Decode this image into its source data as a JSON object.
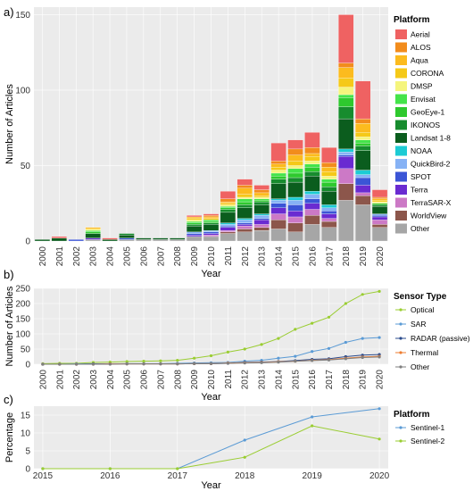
{
  "chart_data": [
    {
      "panel_label": "a)",
      "type": "bar",
      "stacked": true,
      "xlabel": "Year",
      "ylabel": "Number of Articles",
      "ylim": [
        0,
        155
      ],
      "yticks": [
        0,
        50,
        100,
        150
      ],
      "categories": [
        "2000",
        "2001",
        "2002",
        "2003",
        "2004",
        "2005",
        "2006",
        "2007",
        "2008",
        "2009",
        "2010",
        "2011",
        "2012",
        "2013",
        "2014",
        "2015",
        "2016",
        "2017",
        "2018",
        "2019",
        "2020"
      ],
      "legend_title": "Platform",
      "legend_position": "right",
      "series": [
        {
          "name": "Other",
          "color": "#a6a6a6",
          "values": [
            0,
            0,
            0,
            1,
            0,
            1,
            1,
            1,
            1,
            3,
            3,
            5,
            6,
            7,
            8,
            6,
            11,
            9,
            27,
            24,
            9
          ]
        },
        {
          "name": "WorldView",
          "color": "#8c564b",
          "values": [
            0,
            0,
            0,
            0,
            0,
            0,
            0,
            0,
            0,
            0,
            0,
            1,
            2,
            2,
            6,
            6,
            6,
            4,
            11,
            6,
            2
          ]
        },
        {
          "name": "TerraSAR-X",
          "color": "#cc79c6",
          "values": [
            0,
            0,
            0,
            0,
            0,
            0,
            0,
            0,
            0,
            0,
            1,
            1,
            2,
            2,
            4,
            4,
            4,
            2,
            10,
            2,
            3
          ]
        },
        {
          "name": "Terra",
          "color": "#6a2bd1",
          "values": [
            0,
            0,
            0,
            1,
            0,
            0,
            0,
            0,
            0,
            1,
            1,
            2,
            1,
            3,
            4,
            4,
            4,
            3,
            8,
            5,
            2
          ]
        },
        {
          "name": "SPOT",
          "color": "#3b55d6",
          "values": [
            0,
            0,
            1,
            0,
            0,
            1,
            0,
            0,
            0,
            1,
            1,
            1,
            1,
            1,
            3,
            4,
            3,
            2,
            1,
            5,
            1
          ]
        },
        {
          "name": "QuickBird-2",
          "color": "#86b2f5",
          "values": [
            0,
            0,
            0,
            0,
            0,
            0,
            0,
            0,
            0,
            1,
            1,
            1,
            2,
            2,
            2,
            3,
            3,
            2,
            2,
            2,
            1
          ]
        },
        {
          "name": "NOAA",
          "color": "#1ccbd4",
          "values": [
            0,
            0,
            0,
            0,
            0,
            0,
            0,
            0,
            0,
            0,
            0,
            1,
            1,
            1,
            1,
            2,
            2,
            2,
            2,
            3,
            0
          ]
        },
        {
          "name": "Landsat 1-8",
          "color": "#0b5d1e",
          "values": [
            1,
            2,
            0,
            3,
            1,
            2,
            1,
            1,
            1,
            4,
            4,
            7,
            7,
            6,
            10,
            10,
            10,
            9,
            20,
            13,
            5
          ]
        },
        {
          "name": "IKONOS",
          "color": "#178c2e",
          "values": [
            0,
            0,
            0,
            0,
            0,
            1,
            0,
            0,
            0,
            1,
            1,
            2,
            2,
            2,
            3,
            3,
            3,
            3,
            8,
            3,
            1
          ]
        },
        {
          "name": "GeoEye-1",
          "color": "#2ec92e",
          "values": [
            0,
            0,
            0,
            1,
            0,
            0,
            0,
            0,
            0,
            1,
            1,
            1,
            2,
            1,
            2,
            3,
            3,
            3,
            6,
            2,
            1
          ]
        },
        {
          "name": "Envisat",
          "color": "#44e44a",
          "values": [
            0,
            0,
            0,
            1,
            0,
            0,
            0,
            0,
            0,
            1,
            1,
            1,
            2,
            1,
            2,
            3,
            2,
            2,
            2,
            2,
            0
          ]
        },
        {
          "name": "DMSP",
          "color": "#f5f57d",
          "values": [
            0,
            0,
            0,
            1,
            0,
            0,
            0,
            0,
            0,
            1,
            0,
            1,
            1,
            1,
            2,
            2,
            2,
            2,
            5,
            2,
            1
          ]
        },
        {
          "name": "CORONA",
          "color": "#f5c918",
          "values": [
            0,
            0,
            0,
            0,
            0,
            0,
            0,
            0,
            0,
            1,
            1,
            1,
            2,
            1,
            2,
            3,
            3,
            3,
            6,
            3,
            1
          ]
        },
        {
          "name": "Aqua",
          "color": "#fcbb1e",
          "values": [
            0,
            0,
            0,
            1,
            0,
            0,
            0,
            0,
            0,
            1,
            1,
            1,
            4,
            2,
            2,
            4,
            2,
            3,
            7,
            6,
            1
          ]
        },
        {
          "name": "ALOS",
          "color": "#f28c1c",
          "values": [
            0,
            0,
            0,
            0,
            0,
            0,
            0,
            0,
            0,
            0,
            1,
            2,
            2,
            2,
            2,
            4,
            4,
            3,
            3,
            3,
            1
          ]
        },
        {
          "name": "Aerial",
          "color": "#ef6262",
          "values": [
            0,
            1,
            0,
            0,
            1,
            0,
            0,
            0,
            0,
            1,
            1,
            5,
            4,
            3,
            12,
            6,
            10,
            10,
            32,
            25,
            5
          ]
        }
      ],
      "legend_order": [
        "Aerial",
        "ALOS",
        "Aqua",
        "CORONA",
        "DMSP",
        "Envisat",
        "GeoEye-1",
        "IKONOS",
        "Landsat 1-8",
        "NOAA",
        "QuickBird-2",
        "SPOT",
        "Terra",
        "TerraSAR-X",
        "WorldView",
        "Other"
      ]
    },
    {
      "panel_label": "b)",
      "type": "line",
      "xlabel": "Year",
      "ylabel": "Number of Articles",
      "ylim": [
        0,
        250
      ],
      "yticks": [
        0,
        50,
        100,
        150,
        200,
        250
      ],
      "x": [
        "2000",
        "2001",
        "2002",
        "2003",
        "2004",
        "2005",
        "2006",
        "2007",
        "2008",
        "2009",
        "2010",
        "2011",
        "2012",
        "2013",
        "2014",
        "2015",
        "2016",
        "2017",
        "2018",
        "2019",
        "2020"
      ],
      "legend_title": "Sensor Type",
      "legend_position": "right",
      "series": [
        {
          "name": "Optical",
          "color": "#9acd32",
          "values": [
            2,
            3,
            3,
            6,
            7,
            9,
            10,
            11,
            13,
            20,
            28,
            40,
            50,
            65,
            85,
            115,
            135,
            155,
            200,
            230,
            240
          ]
        },
        {
          "name": "SAR",
          "color": "#5b9bd5",
          "values": [
            0,
            0,
            1,
            1,
            1,
            2,
            2,
            2,
            3,
            4,
            5,
            6,
            10,
            13,
            20,
            26,
            42,
            52,
            72,
            85,
            88
          ]
        },
        {
          "name": "RADAR (passive)",
          "color": "#2b4b8c",
          "values": [
            0,
            0,
            0,
            1,
            1,
            1,
            1,
            1,
            1,
            2,
            2,
            3,
            6,
            7,
            9,
            12,
            16,
            18,
            25,
            30,
            32
          ]
        },
        {
          "name": "Thermal",
          "color": "#ed7d31",
          "values": [
            0,
            0,
            0,
            0,
            1,
            1,
            1,
            1,
            1,
            2,
            2,
            4,
            5,
            6,
            8,
            10,
            13,
            15,
            20,
            24,
            26
          ]
        },
        {
          "name": "Other",
          "color": "#7f7f7f",
          "values": [
            0,
            0,
            0,
            0,
            0,
            1,
            1,
            1,
            1,
            2,
            2,
            3,
            4,
            5,
            7,
            10,
            12,
            14,
            18,
            22,
            24
          ]
        }
      ]
    },
    {
      "panel_label": "c)",
      "type": "line",
      "xlabel": "Year",
      "ylabel": "Percentage",
      "ylim": [
        0,
        17.5
      ],
      "yticks": [
        0,
        5,
        10,
        15
      ],
      "x": [
        "2015",
        "2016",
        "2017",
        "2018",
        "2019",
        "2020"
      ],
      "legend_title": "Platform",
      "legend_position": "right",
      "series": [
        {
          "name": "Sentinel-1",
          "color": "#5b9bd5",
          "values": [
            0,
            0,
            0,
            8,
            14.5,
            16.8
          ]
        },
        {
          "name": "Sentinel-2",
          "color": "#9acd32",
          "values": [
            0,
            0,
            0,
            3.2,
            12,
            8.3
          ]
        }
      ]
    }
  ]
}
